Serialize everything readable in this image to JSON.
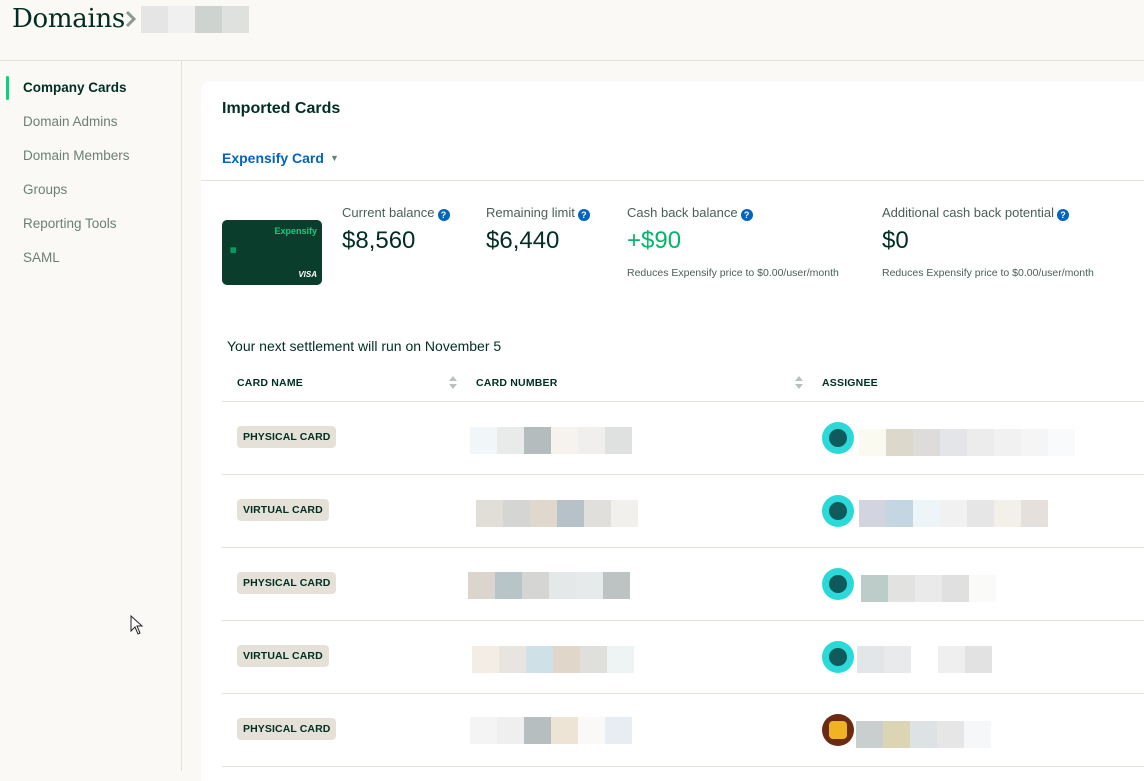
{
  "header": {
    "title": "Domains"
  },
  "sidebar": {
    "items": [
      {
        "label": "Company Cards",
        "active": true
      },
      {
        "label": "Domain Admins"
      },
      {
        "label": "Domain Members"
      },
      {
        "label": "Groups"
      },
      {
        "label": "Reporting Tools"
      },
      {
        "label": "SAML"
      }
    ]
  },
  "main": {
    "title": "Imported Cards",
    "card_selector": "Expensify Card",
    "card_image": {
      "brand": "Expensify",
      "network": "VISA"
    },
    "stats": [
      {
        "label": "Current balance",
        "value": "$8,560",
        "note": ""
      },
      {
        "label": "Remaining limit",
        "value": "$6,440",
        "note": ""
      },
      {
        "label": "Cash back balance",
        "value": "+$90",
        "note": "Reduces Expensify price to $0.00/user/month"
      },
      {
        "label": "Additional cash back potential",
        "value": "$0",
        "note": "Reduces Expensify price to $0.00/user/month"
      }
    ],
    "settlement_text": "Your next settlement will run on November 5",
    "table": {
      "headers": [
        "CARD NAME",
        "CARD NUMBER",
        "ASSIGNEE"
      ],
      "rows": [
        {
          "card_name": "PHYSICAL CARD",
          "avatar": "robot-avatar"
        },
        {
          "card_name": "VIRTUAL CARD",
          "avatar": "robot-avatar"
        },
        {
          "card_name": "PHYSICAL CARD",
          "avatar": "robot-avatar"
        },
        {
          "card_name": "VIRTUAL CARD",
          "avatar": "robot-avatar"
        },
        {
          "card_name": "PHYSICAL CARD",
          "avatar": "taxi-avatar"
        }
      ]
    }
  },
  "colors": {
    "accent_green": "#03d47c",
    "link_blue": "#0164bf",
    "text_dark": "#002e22"
  }
}
